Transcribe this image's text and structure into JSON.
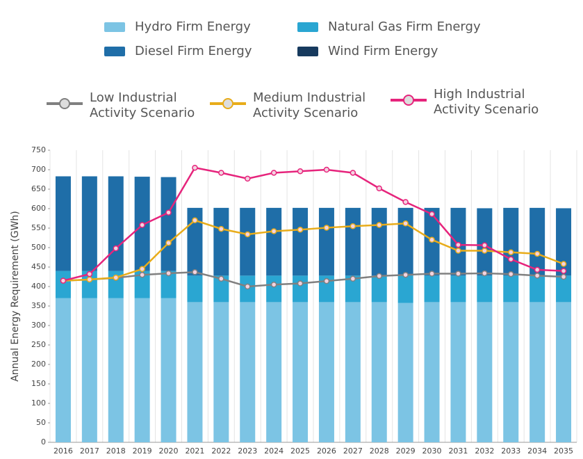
{
  "chart_data": {
    "type": "bar-line",
    "categories": [
      "2016",
      "2017",
      "2018",
      "2019",
      "2020",
      "2021",
      "2022",
      "2023",
      "2024",
      "2025",
      "2026",
      "2027",
      "2028",
      "2029",
      "2030",
      "2031",
      "2032",
      "2033",
      "2034",
      "2035"
    ],
    "ylabel": "Annual Energy Requirement (GWh)",
    "ylim": [
      0,
      750
    ],
    "yticks": [
      0,
      50,
      100,
      150,
      200,
      250,
      300,
      350,
      400,
      450,
      500,
      550,
      600,
      650,
      700,
      750
    ],
    "bar_series": [
      {
        "name": "Hydro Firm Energy",
        "color": "#7cc4e4",
        "values": [
          370,
          370,
          370,
          370,
          370,
          360,
          360,
          360,
          360,
          360,
          360,
          360,
          360,
          358,
          360,
          360,
          360,
          360,
          360,
          360
        ]
      },
      {
        "name": "Natural Gas Firm Energy",
        "color": "#2aa6d2",
        "values": [
          70,
          70,
          70,
          70,
          70,
          68,
          68,
          68,
          68,
          68,
          68,
          68,
          68,
          70,
          68,
          68,
          68,
          68,
          68,
          68
        ]
      },
      {
        "name": "Diesel Firm Energy",
        "color": "#1f6ea8",
        "values": [
          243,
          243,
          243,
          242,
          241,
          174,
          174,
          174,
          174,
          174,
          174,
          174,
          174,
          174,
          174,
          174,
          173,
          174,
          174,
          173
        ]
      },
      {
        "name": "Wind Firm Energy",
        "color": "#173a5e",
        "values": [
          0,
          0,
          0,
          0,
          0,
          0,
          0,
          0,
          0,
          0,
          0,
          0,
          0,
          0,
          0,
          0,
          0,
          0,
          0,
          0
        ]
      }
    ],
    "line_series": [
      {
        "name": "Low Industrial Activity Scenario",
        "color": "#808080",
        "values": [
          415,
          418,
          422,
          430,
          434,
          437,
          420,
          400,
          405,
          408,
          414,
          420,
          427,
          430,
          433,
          433,
          434,
          432,
          428,
          425
        ]
      },
      {
        "name": "Medium Industrial Activity Scenario",
        "color": "#e8ac1a",
        "values": [
          415,
          418,
          423,
          445,
          512,
          570,
          548,
          534,
          542,
          546,
          551,
          555,
          558,
          562,
          520,
          492,
          492,
          488,
          484,
          458
        ]
      },
      {
        "name": "High Industrial Activity Scenario",
        "color": "#e6247c",
        "values": [
          415,
          432,
          498,
          558,
          590,
          705,
          692,
          677,
          692,
          696,
          700,
          692,
          652,
          617,
          586,
          507,
          506,
          470,
          443,
          440
        ]
      }
    ]
  }
}
